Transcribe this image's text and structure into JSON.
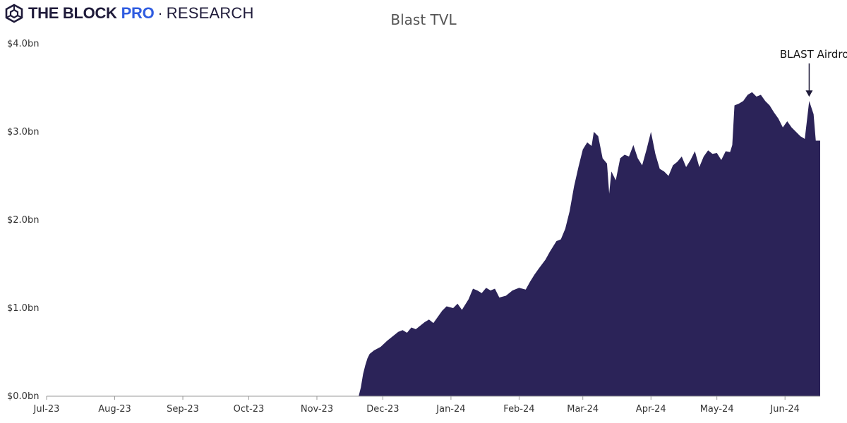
{
  "brand": {
    "name": "THE BLOCK",
    "pro": "PRO",
    "separator": "·",
    "section": "RESEARCH",
    "logo_icon": "cube-logo-icon"
  },
  "colors": {
    "area_fill": "#2b2358",
    "axis": "#999999",
    "annotation": "#1f1b3a"
  },
  "chart_data": {
    "type": "area",
    "title": "Blast TVL",
    "xlabel": "",
    "ylabel": "",
    "ylim": [
      0,
      4.0
    ],
    "grid": false,
    "x_ticks": [
      "Jul-23",
      "Aug-23",
      "Sep-23",
      "Oct-23",
      "Nov-23",
      "Dec-23",
      "Jan-24",
      "Feb-24",
      "Mar-24",
      "Apr-24",
      "May-24",
      "Jun-24"
    ],
    "y_ticks": [
      "$0.0bn",
      "$1.0bn",
      "$2.0bn",
      "$3.0bn",
      "$4.0bn"
    ],
    "y_tick_values": [
      0,
      1,
      2,
      3,
      4
    ],
    "x_range": [
      "2023-07-01",
      "2024-06-17"
    ],
    "series": [
      {
        "unit": "$bn",
        "points": [
          [
            "2023-07-01",
            0.0
          ],
          [
            "2023-11-20",
            0.0
          ],
          [
            "2023-11-21",
            0.1
          ],
          [
            "2023-11-22",
            0.25
          ],
          [
            "2023-11-23",
            0.35
          ],
          [
            "2023-11-24",
            0.43
          ],
          [
            "2023-11-25",
            0.48
          ],
          [
            "2023-11-27",
            0.52
          ],
          [
            "2023-11-30",
            0.56
          ],
          [
            "2023-12-03",
            0.63
          ],
          [
            "2023-12-06",
            0.69
          ],
          [
            "2023-12-08",
            0.73
          ],
          [
            "2023-12-10",
            0.75
          ],
          [
            "2023-12-12",
            0.72
          ],
          [
            "2023-12-14",
            0.78
          ],
          [
            "2023-12-16",
            0.76
          ],
          [
            "2023-12-18",
            0.8
          ],
          [
            "2023-12-20",
            0.84
          ],
          [
            "2023-12-22",
            0.87
          ],
          [
            "2023-12-24",
            0.83
          ],
          [
            "2023-12-26",
            0.9
          ],
          [
            "2023-12-28",
            0.97
          ],
          [
            "2023-12-30",
            1.02
          ],
          [
            "2024-01-02",
            1.0
          ],
          [
            "2024-01-04",
            1.05
          ],
          [
            "2024-01-06",
            0.98
          ],
          [
            "2024-01-09",
            1.1
          ],
          [
            "2024-01-11",
            1.22
          ],
          [
            "2024-01-13",
            1.2
          ],
          [
            "2024-01-15",
            1.17
          ],
          [
            "2024-01-17",
            1.23
          ],
          [
            "2024-01-19",
            1.2
          ],
          [
            "2024-01-21",
            1.22
          ],
          [
            "2024-01-23",
            1.12
          ],
          [
            "2024-01-26",
            1.14
          ],
          [
            "2024-01-29",
            1.2
          ],
          [
            "2024-02-01",
            1.23
          ],
          [
            "2024-02-04",
            1.21
          ],
          [
            "2024-02-06",
            1.3
          ],
          [
            "2024-02-08",
            1.38
          ],
          [
            "2024-02-10",
            1.45
          ],
          [
            "2024-02-13",
            1.55
          ],
          [
            "2024-02-15",
            1.64
          ],
          [
            "2024-02-18",
            1.76
          ],
          [
            "2024-02-20",
            1.78
          ],
          [
            "2024-02-22",
            1.9
          ],
          [
            "2024-02-24",
            2.1
          ],
          [
            "2024-02-26",
            2.38
          ],
          [
            "2024-02-28",
            2.6
          ],
          [
            "2024-03-01",
            2.8
          ],
          [
            "2024-03-03",
            2.88
          ],
          [
            "2024-03-05",
            2.84
          ],
          [
            "2024-03-06",
            3.0
          ],
          [
            "2024-03-08",
            2.95
          ],
          [
            "2024-03-10",
            2.7
          ],
          [
            "2024-03-12",
            2.64
          ],
          [
            "2024-03-13",
            2.3
          ],
          [
            "2024-03-14",
            2.55
          ],
          [
            "2024-03-16",
            2.45
          ],
          [
            "2024-03-18",
            2.7
          ],
          [
            "2024-03-20",
            2.74
          ],
          [
            "2024-03-22",
            2.72
          ],
          [
            "2024-03-24",
            2.85
          ],
          [
            "2024-03-26",
            2.7
          ],
          [
            "2024-03-28",
            2.62
          ],
          [
            "2024-03-30",
            2.8
          ],
          [
            "2024-04-01",
            3.0
          ],
          [
            "2024-04-03",
            2.75
          ],
          [
            "2024-04-05",
            2.58
          ],
          [
            "2024-04-07",
            2.55
          ],
          [
            "2024-04-09",
            2.5
          ],
          [
            "2024-04-11",
            2.62
          ],
          [
            "2024-04-13",
            2.66
          ],
          [
            "2024-04-15",
            2.72
          ],
          [
            "2024-04-17",
            2.6
          ],
          [
            "2024-04-19",
            2.68
          ],
          [
            "2024-04-21",
            2.78
          ],
          [
            "2024-04-23",
            2.6
          ],
          [
            "2024-04-25",
            2.72
          ],
          [
            "2024-04-27",
            2.79
          ],
          [
            "2024-04-29",
            2.75
          ],
          [
            "2024-05-01",
            2.76
          ],
          [
            "2024-05-03",
            2.68
          ],
          [
            "2024-05-05",
            2.78
          ],
          [
            "2024-05-07",
            2.77
          ],
          [
            "2024-05-08",
            2.85
          ],
          [
            "2024-05-09",
            3.3
          ],
          [
            "2024-05-11",
            3.32
          ],
          [
            "2024-05-13",
            3.35
          ],
          [
            "2024-05-15",
            3.42
          ],
          [
            "2024-05-17",
            3.45
          ],
          [
            "2024-05-19",
            3.4
          ],
          [
            "2024-05-21",
            3.42
          ],
          [
            "2024-05-23",
            3.35
          ],
          [
            "2024-05-25",
            3.3
          ],
          [
            "2024-05-27",
            3.22
          ],
          [
            "2024-05-29",
            3.15
          ],
          [
            "2024-05-31",
            3.05
          ],
          [
            "2024-06-02",
            3.12
          ],
          [
            "2024-06-04",
            3.05
          ],
          [
            "2024-06-06",
            3.0
          ],
          [
            "2024-06-08",
            2.95
          ],
          [
            "2024-06-10",
            2.92
          ],
          [
            "2024-06-12",
            3.35
          ],
          [
            "2024-06-14",
            3.2
          ],
          [
            "2024-06-15",
            2.9
          ],
          [
            "2024-06-17",
            2.9
          ]
        ]
      }
    ],
    "annotations": [
      {
        "text": "BLAST Airdrop",
        "date": "2024-06-12",
        "value": 3.35,
        "arrow": true
      }
    ]
  }
}
